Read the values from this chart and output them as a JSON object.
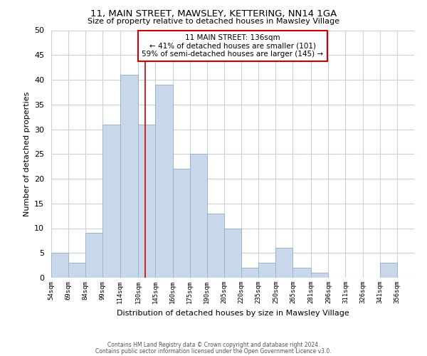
{
  "title1": "11, MAIN STREET, MAWSLEY, KETTERING, NN14 1GA",
  "title2": "Size of property relative to detached houses in Mawsley Village",
  "xlabel": "Distribution of detached houses by size in Mawsley Village",
  "ylabel": "Number of detached properties",
  "bin_labels": [
    "54sqm",
    "69sqm",
    "84sqm",
    "99sqm",
    "114sqm",
    "130sqm",
    "145sqm",
    "160sqm",
    "175sqm",
    "190sqm",
    "205sqm",
    "220sqm",
    "235sqm",
    "250sqm",
    "265sqm",
    "281sqm",
    "296sqm",
    "311sqm",
    "326sqm",
    "341sqm",
    "356sqm"
  ],
  "bar_heights": [
    5,
    3,
    9,
    31,
    41,
    31,
    39,
    22,
    25,
    13,
    10,
    2,
    3,
    6,
    2,
    1,
    0,
    0,
    0,
    3,
    0
  ],
  "bar_color": "#c8d8ea",
  "bar_edge_color": "#9ab4cc",
  "bar_linewidth": 0.7,
  "vline_color": "#cc0000",
  "ylim": [
    0,
    50
  ],
  "yticks": [
    0,
    5,
    10,
    15,
    20,
    25,
    30,
    35,
    40,
    45,
    50
  ],
  "annotation_title": "11 MAIN STREET: 136sqm",
  "annotation_line1": "← 41% of detached houses are smaller (101)",
  "annotation_line2": "59% of semi-detached houses are larger (145) →",
  "annotation_box_color": "#ffffff",
  "annotation_box_edge": "#cc0000",
  "footer1": "Contains HM Land Registry data © Crown copyright and database right 2024.",
  "footer2": "Contains public sector information licensed under the Open Government Licence v3.0.",
  "background_color": "#ffffff",
  "grid_color": "#c8d0dc",
  "bin_edges": [
    54,
    69,
    84,
    99,
    114,
    130,
    145,
    160,
    175,
    190,
    205,
    220,
    235,
    250,
    265,
    281,
    296,
    311,
    326,
    341,
    356,
    371
  ],
  "vline_x": 136
}
